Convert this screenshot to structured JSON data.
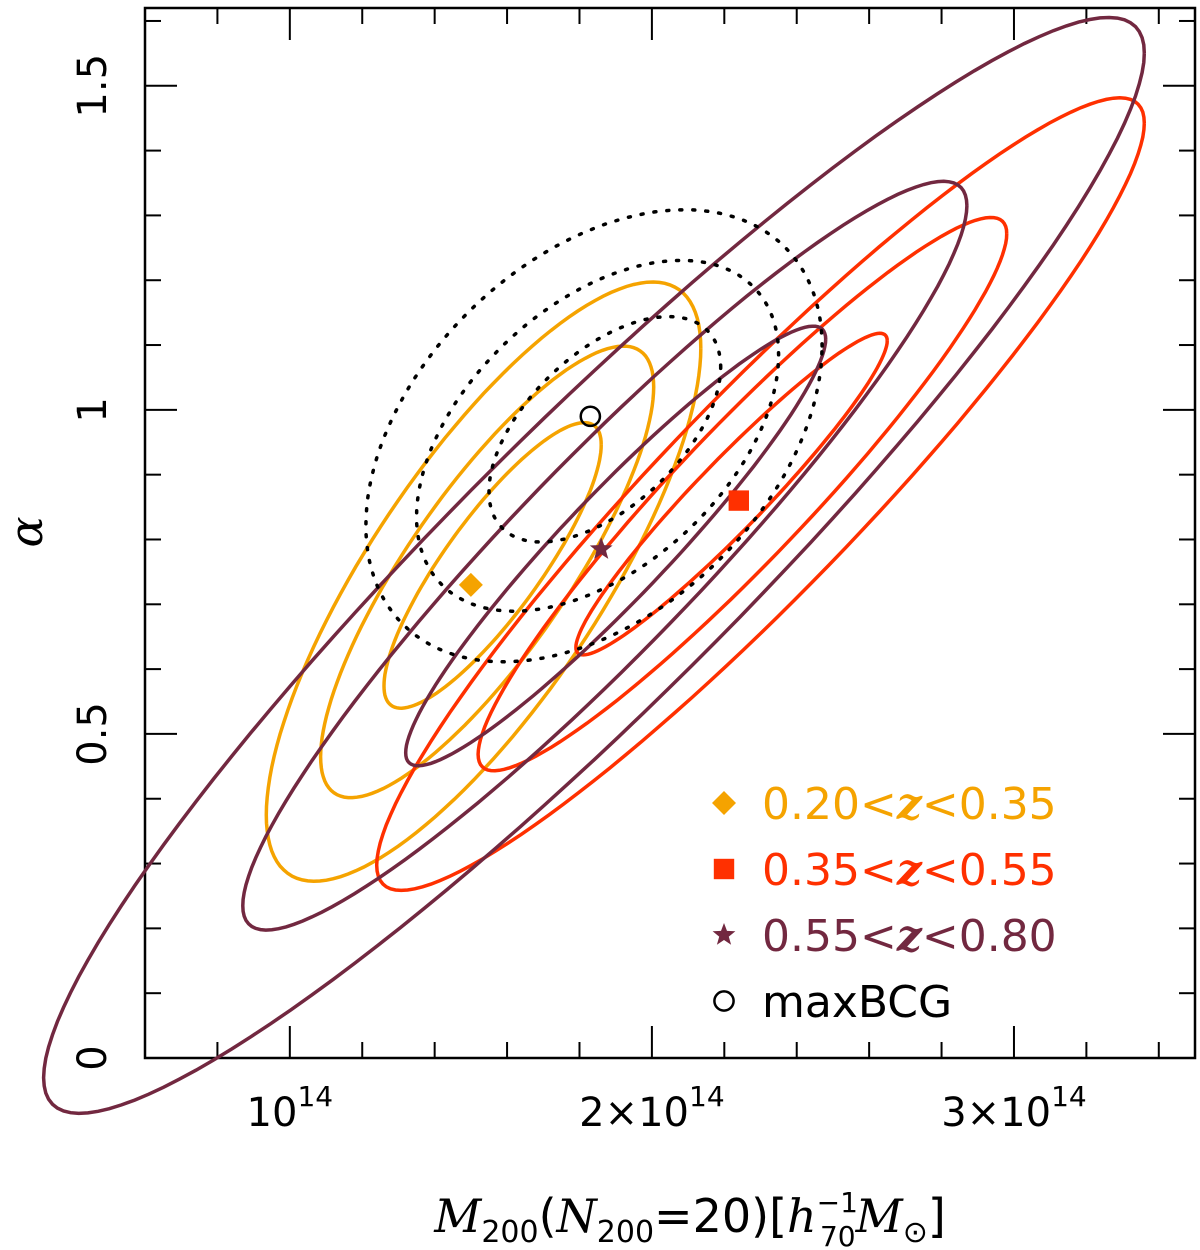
{
  "chart_data": {
    "type": "scatter",
    "title": "",
    "xlabel": {
      "main": "M",
      "sub1": "200",
      "paren_open": "(",
      "n": "N",
      "sub2": "200",
      "eq": "=20)",
      "bracket_open": "[",
      "h": "h",
      "h_sup": "−1",
      "h_sub": "70",
      "m": "M",
      "sun": "⊙",
      "bracket_close": "]"
    },
    "ylabel": "α",
    "xlim": [
      60000000000000.0,
      350000000000000.0
    ],
    "ylim": [
      0,
      1.62
    ],
    "x_ticks": [
      {
        "value": 100000000000000.0,
        "mantissa": "",
        "base": "10",
        "exp": "14"
      },
      {
        "value": 200000000000000.0,
        "mantissa": "2×",
        "base": "10",
        "exp": "14"
      },
      {
        "value": 300000000000000.0,
        "mantissa": "3×",
        "base": "10",
        "exp": "14"
      }
    ],
    "x_minor_step": 20000000000000.0,
    "y_ticks": [
      {
        "value": 0,
        "label": "0"
      },
      {
        "value": 0.5,
        "label": "0.5"
      },
      {
        "value": 1,
        "label": "1"
      },
      {
        "value": 1.5,
        "label": "1.5"
      }
    ],
    "y_minor_step": 0.1,
    "grid": false,
    "legend_position": "bottom-right",
    "series": [
      {
        "name": "0.20<z<0.35",
        "legend_parts": [
          "0.20<",
          "z",
          "<0.35"
        ],
        "color": "#f5a300",
        "marker": "diamond",
        "dash": "solid",
        "point": {
          "x": 150000000000000.0,
          "y": 0.73
        },
        "contours": [
          {
            "cx": 156000000000000.0,
            "cy": 0.76,
            "a": 30000000000000.0,
            "b": 0.118,
            "tilt": 0.62
          },
          {
            "cx": 154500000000000.0,
            "cy": 0.75,
            "a": 46000000000000.0,
            "b": 0.2,
            "tilt": 0.62
          },
          {
            "cx": 153500000000000.0,
            "cy": 0.735,
            "a": 60000000000000.0,
            "b": 0.29,
            "tilt": 0.6
          }
        ]
      },
      {
        "name": "0.35<z<0.55",
        "legend_parts": [
          "0.35<",
          "z",
          "<0.55"
        ],
        "color": "#ff3000",
        "marker": "square",
        "dash": "solid",
        "point": {
          "x": 224000000000000.0,
          "y": 0.86
        },
        "contours": [
          {
            "cx": 222000000000000.0,
            "cy": 0.87,
            "a": 43000000000000.0,
            "b": 0.075,
            "tilt": 0.55
          },
          {
            "cx": 225000000000000.0,
            "cy": 0.87,
            "a": 73000000000000.0,
            "b": 0.145,
            "tilt": 0.55
          },
          {
            "cx": 230000000000000.0,
            "cy": 0.87,
            "a": 106000000000000.0,
            "b": 0.215,
            "tilt": 0.54
          }
        ]
      },
      {
        "name": "0.55<z<0.80",
        "legend_parts": [
          "0.55<",
          "z",
          "<0.80"
        ],
        "color": "#722840",
        "marker": "star",
        "dash": "solid",
        "point": {
          "x": 186000000000000.0,
          "y": 0.785
        },
        "contours": [
          {
            "cx": 190000000000000.0,
            "cy": 0.79,
            "a": 58000000000000.0,
            "b": 0.115,
            "tilt": 0.55
          },
          {
            "cx": 187000000000000.0,
            "cy": 0.775,
            "a": 100000000000000.0,
            "b": 0.205,
            "tilt": 0.54
          },
          {
            "cx": 184000000000000.0,
            "cy": 0.76,
            "a": 152000000000000.0,
            "b": 0.3,
            "tilt": 0.52
          }
        ]
      },
      {
        "name": "maxBCG",
        "legend_parts": [
          "maxBCG",
          "",
          ""
        ],
        "color": "#000000",
        "marker": "circle-open",
        "dash": "dotted",
        "point": {
          "x": 183000000000000.0,
          "y": 0.99
        },
        "contours": [
          {
            "cx": 187000000000000.0,
            "cy": 0.97,
            "a": 32000000000000.0,
            "b": 0.145,
            "tilt": 0.3
          },
          {
            "cx": 185000000000000.0,
            "cy": 0.96,
            "a": 50000000000000.0,
            "b": 0.24,
            "tilt": 0.25
          },
          {
            "cx": 184000000000000.0,
            "cy": 0.96,
            "a": 63000000000000.0,
            "b": 0.32,
            "tilt": 0.22
          }
        ]
      }
    ]
  }
}
